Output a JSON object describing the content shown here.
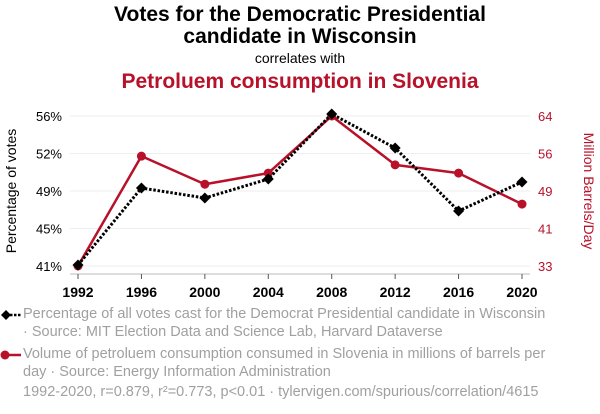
{
  "header": {
    "title_line1": "Votes for the Democratic Presidential",
    "title_line2": "candidate in Wisconsin",
    "correlates": "correlates with",
    "subtitle": "Petroluem consumption in Slovenia"
  },
  "colors": {
    "series1": "#000000",
    "series2": "#b8112a",
    "grid": "#eeeeee",
    "legend_text": "#a0a0a0"
  },
  "chart_data": {
    "type": "line",
    "title": "Votes for the Democratic Presidential candidate in Wisconsin correlates with Petroluem consumption in Slovenia",
    "x": [
      1992,
      1996,
      2000,
      2004,
      2008,
      2012,
      2016,
      2020
    ],
    "x_tick_labels": [
      "1992",
      "1996",
      "2000",
      "2004",
      "2008",
      "2012",
      "2016",
      "2020"
    ],
    "xlabel": "",
    "y_left": {
      "label": "Percentage of votes",
      "range": [
        41,
        56
      ],
      "ticks": [
        41,
        44.75,
        48.5,
        52.25,
        56
      ],
      "tick_labels": [
        "41%",
        "45%",
        "49%",
        "52%",
        "56%"
      ]
    },
    "y_right": {
      "label": "Million Barrels/Day",
      "range": [
        33,
        64
      ],
      "ticks": [
        33,
        40.75,
        48.5,
        56.25,
        64
      ],
      "tick_labels": [
        "33",
        "41",
        "49",
        "56",
        "64"
      ]
    },
    "grid": true,
    "legend_position": "bottom",
    "series": [
      {
        "name": "Percentage of all votes cast for the Democrat Presidential candidate in Wisconsin",
        "axis": "left",
        "style": "dotted-diamond",
        "values": [
          41.1,
          48.8,
          47.8,
          49.7,
          56.2,
          52.8,
          46.5,
          49.4
        ]
      },
      {
        "name": "Volume of petroluem consumption consumed in Slovenia in millions of barrels per day",
        "axis": "right",
        "style": "solid-circle",
        "values": [
          33.0,
          55.7,
          49.9,
          52.2,
          64.0,
          53.9,
          52.2,
          45.8
        ]
      }
    ]
  },
  "legend": {
    "item1_line1": "Percentage of all votes cast for the Democrat Presidential candidate in Wisconsin",
    "item1_line2": "· Source: MIT Election Data and Science Lab, Harvard Dataverse",
    "item2_line1": "Volume of petroluem consumption consumed in Slovenia in millions of barrels per",
    "item2_line2": "day · Source: Energy Information Administration"
  },
  "footer": {
    "stats": "1992-2020, r=0.879, r²=0.773, p<0.01 · tylervigen.com/spurious/correlation/4615"
  }
}
